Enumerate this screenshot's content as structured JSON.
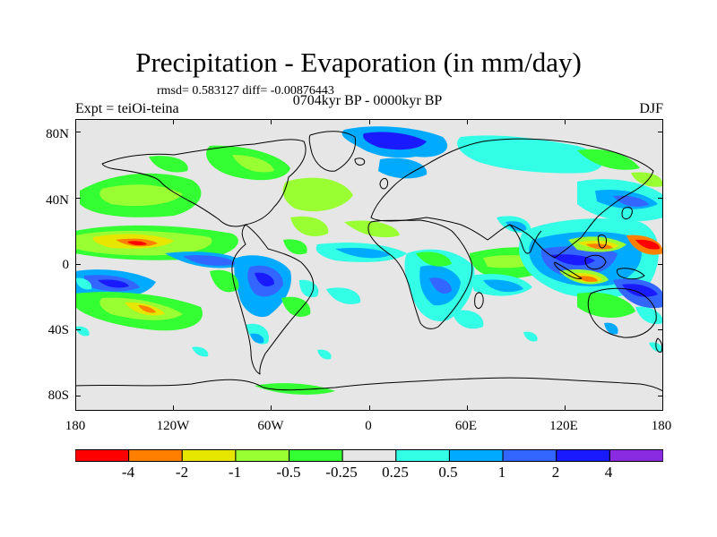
{
  "title": "Precipitation - Evaporation (in mm/day)",
  "stats": "rmsd= 0.583127 diff= -0.00876443",
  "subtitle": "0704kyr BP - 0000kyr BP",
  "experiment": "Expt = teiOi-teina",
  "season": "DJF",
  "lat_labels": [
    "80N",
    "40N",
    "0",
    "40S",
    "80S"
  ],
  "lon_labels": [
    "180",
    "120W",
    "60W",
    "0",
    "60E",
    "120E",
    "180"
  ],
  "colorbar": {
    "colors": [
      "#ff0000",
      "#ff8000",
      "#e6e600",
      "#99ff33",
      "#33ff33",
      "#e6e6e6",
      "#33ffe6",
      "#00aaff",
      "#3366ff",
      "#1a1aff",
      "#8a2be2"
    ],
    "labels": [
      "-4",
      "-2",
      "-1",
      "-0.5",
      "-0.25",
      "0.25",
      "0.5",
      "1",
      "2",
      "4"
    ]
  }
}
